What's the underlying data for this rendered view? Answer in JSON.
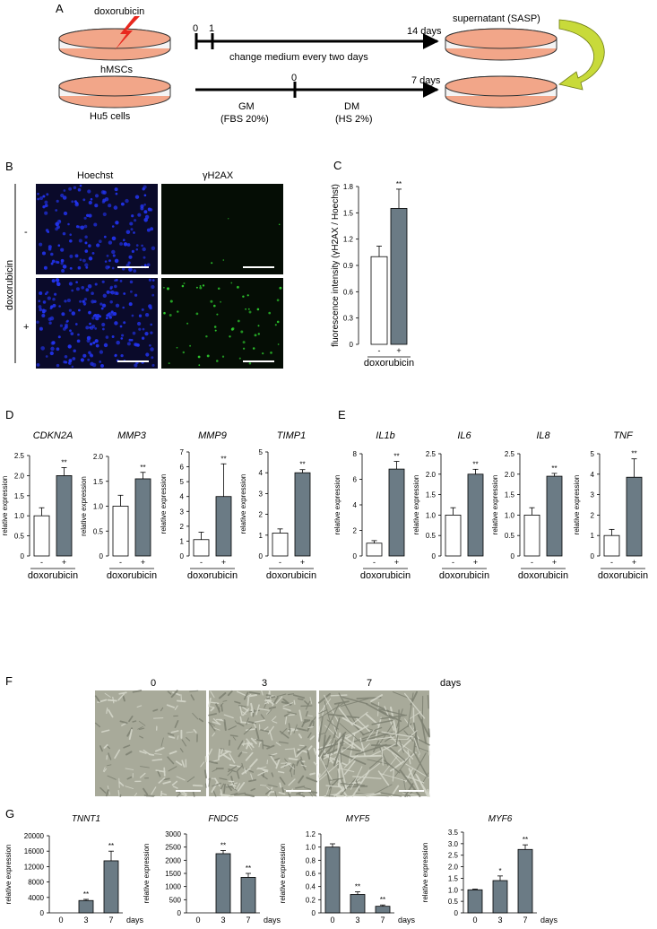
{
  "panel_letters": {
    "A": "A",
    "B": "B",
    "C": "C",
    "D": "D",
    "E": "E",
    "F": "F",
    "G": "G"
  },
  "panelA": {
    "doxorubicin": "doxorubicin",
    "hmscs": "hMSCs",
    "hu5": "Hu5 cells",
    "t0": "0",
    "t1": "1",
    "days14": "14 days",
    "change_medium": "change medium every two days",
    "supernatant": "supernatant (SASP)",
    "gm": "GM",
    "fbs": "(FBS 20%)",
    "dm_t0": "0",
    "days7": "7 days",
    "dm": "DM",
    "hs": "(HS 2%)",
    "colors": {
      "dish_fill": "#f2a689",
      "dish_rim": "#f4f4f4",
      "bolt": "#e8281f",
      "arrow": "#c8da3a"
    }
  },
  "panelB": {
    "col1": "Hoechst",
    "col2": "γH2AX",
    "row_label": "doxorubicin",
    "minus": "-",
    "plus": "+",
    "colors": {
      "hoechst_bg": "#0a0a2a",
      "hoechst_dot": "#2233ee",
      "h2ax_bg": "#050d05",
      "h2ax_dot": "#2fd12f"
    }
  },
  "chart_data": [
    {
      "id": "C",
      "type": "bar",
      "ylabel": "fluorescence intensity (γH2AX / Hoechst)",
      "yticks": [
        "0",
        "0.3",
        "0.6",
        "0.9",
        "1.2",
        "1.5",
        "1.8"
      ],
      "ylim": [
        0,
        1.8
      ],
      "categories": [
        "-",
        "+"
      ],
      "values": [
        1.0,
        1.55
      ],
      "errors": [
        0.12,
        0.22
      ],
      "sig": [
        "",
        "**"
      ],
      "xlabel": "doxorubicin"
    },
    {
      "id": "D1",
      "type": "bar",
      "title": "CDKN2A",
      "ylabel": "relative expression",
      "yticks": [
        "0",
        "0.5",
        "1.0",
        "1.5",
        "2.0",
        "2.5"
      ],
      "ylim": [
        0,
        2.5
      ],
      "categories": [
        "-",
        "+"
      ],
      "values": [
        1.0,
        2.0
      ],
      "errors": [
        0.2,
        0.2
      ],
      "sig": [
        "",
        "**"
      ],
      "xlabel": "doxorubicin"
    },
    {
      "id": "D2",
      "type": "bar",
      "title": "MMP3",
      "ylabel": "relative expression",
      "yticks": [
        "0",
        "0.5",
        "1.0",
        "1.5",
        "2.0"
      ],
      "ylim": [
        0,
        2.0
      ],
      "categories": [
        "-",
        "+"
      ],
      "values": [
        1.0,
        1.55
      ],
      "errors": [
        0.22,
        0.13
      ],
      "sig": [
        "",
        "**"
      ],
      "xlabel": "doxorubicin"
    },
    {
      "id": "D3",
      "type": "bar",
      "title": "MMP9",
      "ylabel": "relative expression",
      "yticks": [
        "0",
        "1",
        "2",
        "3",
        "4",
        "5",
        "6",
        "7"
      ],
      "ylim": [
        0,
        7
      ],
      "categories": [
        "-",
        "+"
      ],
      "values": [
        1.1,
        4.0
      ],
      "errors": [
        0.5,
        2.2
      ],
      "sig": [
        "",
        "**"
      ],
      "xlabel": "doxorubicin"
    },
    {
      "id": "D4",
      "type": "bar",
      "title": "TIMP1",
      "ylabel": "relative expression",
      "yticks": [
        "0",
        "1",
        "2",
        "3",
        "4",
        "5"
      ],
      "ylim": [
        0,
        5
      ],
      "categories": [
        "-",
        "+"
      ],
      "values": [
        1.1,
        4.0
      ],
      "errors": [
        0.2,
        0.15
      ],
      "sig": [
        "",
        "**"
      ],
      "xlabel": "doxorubicin"
    },
    {
      "id": "E1",
      "type": "bar",
      "title": "IL1b",
      "ylabel": "relative expression",
      "yticks": [
        "0",
        "2",
        "4",
        "6",
        "8"
      ],
      "ylim": [
        0,
        8
      ],
      "categories": [
        "-",
        "+"
      ],
      "values": [
        1.0,
        6.8
      ],
      "errors": [
        0.2,
        0.6
      ],
      "sig": [
        "",
        "**"
      ],
      "xlabel": "doxorubicin"
    },
    {
      "id": "E2",
      "type": "bar",
      "title": "IL6",
      "ylabel": "relative expression",
      "yticks": [
        "0",
        "0.5",
        "1.0",
        "1.5",
        "2.0",
        "2.5"
      ],
      "ylim": [
        0,
        2.5
      ],
      "categories": [
        "-",
        "+"
      ],
      "values": [
        1.0,
        2.0
      ],
      "errors": [
        0.18,
        0.12
      ],
      "sig": [
        "",
        "**"
      ],
      "xlabel": "doxorubicin"
    },
    {
      "id": "E3",
      "type": "bar",
      "title": "IL8",
      "ylabel": "relative expression",
      "yticks": [
        "0",
        "0.5",
        "1.0",
        "1.5",
        "2.0",
        "2.5"
      ],
      "ylim": [
        0,
        2.5
      ],
      "categories": [
        "-",
        "+"
      ],
      "values": [
        1.0,
        1.95
      ],
      "errors": [
        0.18,
        0.07
      ],
      "sig": [
        "",
        "**"
      ],
      "xlabel": "doxorubicin"
    },
    {
      "id": "E4",
      "type": "bar",
      "title": "TNF",
      "ylabel": "relative expression",
      "yticks": [
        "0",
        "1",
        "2",
        "3",
        "4",
        "5"
      ],
      "ylim": [
        0,
        5
      ],
      "categories": [
        "-",
        "+"
      ],
      "values": [
        1.0,
        3.85
      ],
      "errors": [
        0.3,
        0.9
      ],
      "sig": [
        "",
        "**"
      ],
      "xlabel": "doxorubicin"
    },
    {
      "id": "G1",
      "type": "bar",
      "title": "TNNT1",
      "ylabel": "relative expression",
      "yticks": [
        "0",
        "4000",
        "8000",
        "12000",
        "16000",
        "20000"
      ],
      "ylim": [
        0,
        20000
      ],
      "categories": [
        "0",
        "3",
        "7"
      ],
      "values": [
        0,
        3200,
        13500
      ],
      "errors": [
        0,
        300,
        2500
      ],
      "sig": [
        "",
        "**",
        "**"
      ],
      "xlabel": "days"
    },
    {
      "id": "G2",
      "type": "bar",
      "title": "FNDC5",
      "ylabel": "relative expression",
      "yticks": [
        "0",
        "500",
        "1000",
        "1500",
        "2000",
        "2500",
        "3000"
      ],
      "ylim": [
        0,
        3000
      ],
      "categories": [
        "0",
        "3",
        "7"
      ],
      "values": [
        0,
        2250,
        1350
      ],
      "errors": [
        0,
        120,
        150
      ],
      "sig": [
        "",
        "**",
        "**"
      ],
      "xlabel": "days"
    },
    {
      "id": "G3",
      "type": "bar",
      "title": "MYF5",
      "ylabel": "relative expression",
      "yticks": [
        "0",
        "0.2",
        "0.4",
        "0.6",
        "0.8",
        "1.0",
        "1.2"
      ],
      "ylim": [
        0,
        1.2
      ],
      "categories": [
        "0",
        "3",
        "7"
      ],
      "values": [
        1.0,
        0.28,
        0.1
      ],
      "errors": [
        0.05,
        0.04,
        0.02
      ],
      "sig": [
        "",
        "**",
        "**"
      ],
      "xlabel": "days"
    },
    {
      "id": "G4",
      "type": "bar",
      "title": "MYF6",
      "ylabel": "relative expression",
      "yticks": [
        "0",
        "0.5",
        "1.0",
        "1.5",
        "2.0",
        "2.5",
        "3.0",
        "3.5"
      ],
      "ylim": [
        0,
        3.5
      ],
      "categories": [
        "0",
        "3",
        "7"
      ],
      "values": [
        1.0,
        1.4,
        2.75
      ],
      "errors": [
        0.03,
        0.2,
        0.2
      ],
      "sig": [
        "",
        "*",
        "**"
      ],
      "xlabel": "days"
    }
  ],
  "panelF": {
    "day0": "0",
    "day3": "3",
    "day7": "7",
    "days": "days",
    "colors": {
      "bg": "#a8aa9a",
      "cell": "#7d8072",
      "bright": "#d6d8cc"
    }
  },
  "colors": {
    "bar_treated": "#6b7b85",
    "bar_control": "#ffffff",
    "axis": "#000000"
  }
}
